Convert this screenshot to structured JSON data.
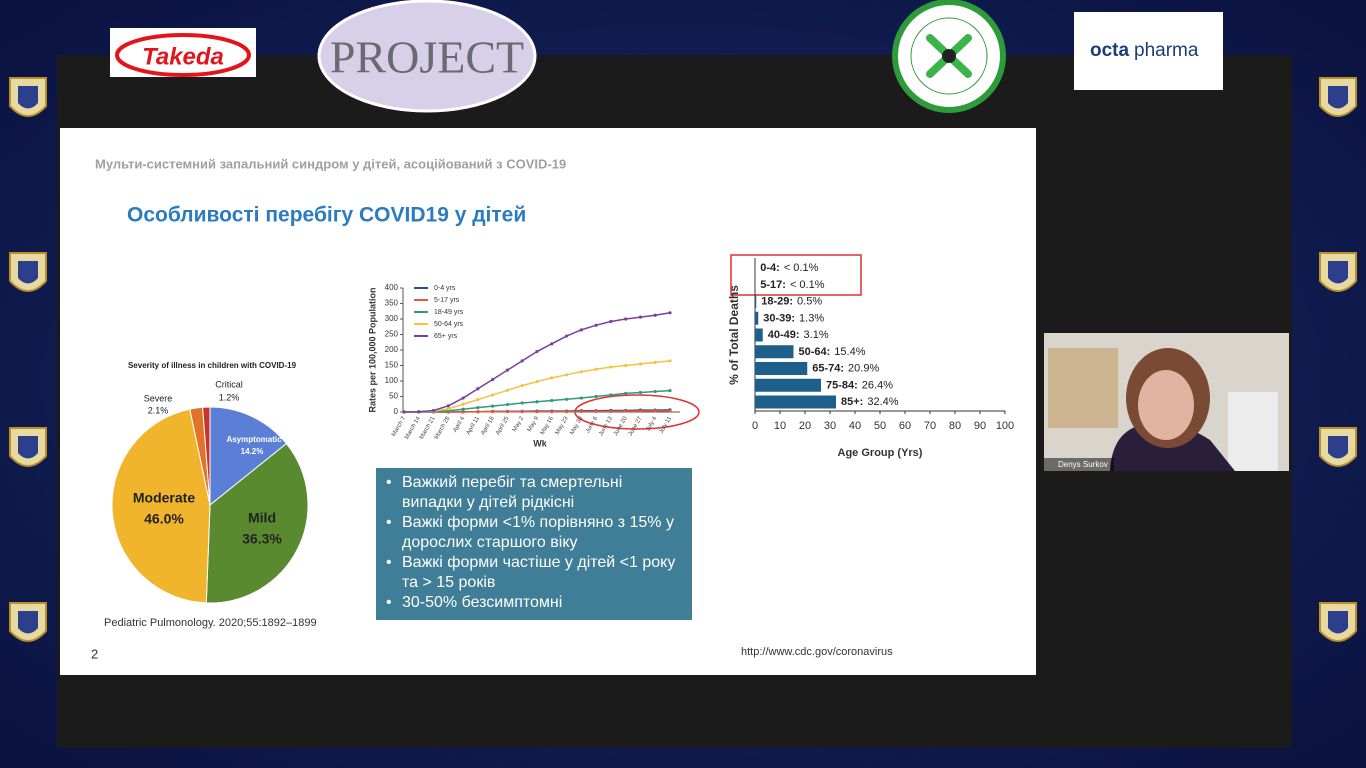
{
  "header": {
    "logos": [
      "Takeda",
      "PROJECT",
      "octa",
      "pharma"
    ]
  },
  "slide": {
    "subtitle": "Мульти-системний запальний синдром  у дітей, асоційований з COVID-19",
    "title": "Особливості перебігу COVID19 у дітей",
    "bullets": [
      "Важкий перебіг та смертельні випадки у дітей рідкісні",
      "Важкі форми <1% порівняно з 15% у дорослих старшого віку",
      "Важкі форми частіше у дітей <1 року  та > 15 років",
      "30-50% безсимптомні"
    ],
    "source": "Pediatric Pulmonology. 2020;55:1892–1899",
    "page_number": "2",
    "url": "http://www.cdc.gov/coronavirus"
  },
  "webcam": {
    "name": "Denys Surkov"
  },
  "chart_data": [
    {
      "type": "pie",
      "title": "Severity of illness in children with COVID-19",
      "categories": [
        "Asymptomatic",
        "Mild",
        "Moderate",
        "Severe",
        "Critical"
      ],
      "values": [
        14.2,
        36.3,
        46.0,
        2.1,
        1.2
      ],
      "value_labels": [
        "14.2%",
        "36.3%",
        "46.0%",
        "2.1%",
        "1.2%"
      ],
      "colors": [
        "#5b7fd6",
        "#5a8a30",
        "#f0b52c",
        "#e0742a",
        "#c8352a"
      ]
    },
    {
      "type": "line",
      "y_label": "Rates per 100,000 Population",
      "x_label": "Wk",
      "categories": [
        "March 7",
        "March 14",
        "March 21",
        "March 28",
        "April 4",
        "April 11",
        "April 18",
        "April 25",
        "May 2",
        "May 9",
        "May 16",
        "May 23",
        "May 30",
        "June 6",
        "June 13",
        "June 20",
        "June 27",
        "July 4",
        "July 11"
      ],
      "ylim": [
        0,
        400
      ],
      "yticks": [
        0,
        50,
        100,
        150,
        200,
        250,
        300,
        350,
        400
      ],
      "series": [
        {
          "name": "0-4 yrs",
          "color": "#2a4d8f",
          "values": [
            0,
            0,
            0,
            0,
            1,
            1,
            2,
            2,
            2,
            3,
            3,
            3,
            4,
            4,
            5,
            5,
            6,
            6,
            7
          ]
        },
        {
          "name": "5-17 yrs",
          "color": "#e05a3a",
          "values": [
            0,
            0,
            0,
            0,
            0,
            1,
            1,
            1,
            1,
            1,
            1,
            1,
            2,
            2,
            2,
            3,
            3,
            4,
            4
          ]
        },
        {
          "name": "18-49 yrs",
          "color": "#2e9a7a",
          "values": [
            0,
            0,
            1,
            4,
            9,
            14,
            19,
            24,
            29,
            33,
            37,
            41,
            45,
            50,
            55,
            60,
            63,
            66,
            69
          ]
        },
        {
          "name": "50-64 yrs",
          "color": "#f5c242",
          "values": [
            0,
            0,
            3,
            10,
            25,
            40,
            55,
            70,
            85,
            98,
            110,
            120,
            130,
            138,
            145,
            150,
            155,
            160,
            165
          ]
        },
        {
          "name": "65+ yrs",
          "color": "#7b3f9e",
          "values": [
            0,
            1,
            5,
            20,
            45,
            75,
            105,
            135,
            165,
            195,
            220,
            245,
            265,
            280,
            292,
            300,
            306,
            312,
            320
          ]
        }
      ]
    },
    {
      "type": "hbar",
      "y_label": "% of Total Deaths",
      "x_label": "Age Group (Yrs)",
      "categories": [
        "0-4:",
        "5-17:",
        "18-29:",
        "30-39:",
        "40-49:",
        "50-64:",
        "65-74:",
        "75-84:",
        "85+:"
      ],
      "values": [
        0.1,
        0.1,
        0.5,
        1.3,
        3.1,
        15.4,
        20.9,
        26.4,
        32.4
      ],
      "value_labels": [
        "< 0.1%",
        "< 0.1%",
        "0.5%",
        "1.3%",
        "3.1%",
        "15.4%",
        "20.9%",
        "26.4%",
        "32.4%"
      ],
      "color": "#1f5f8b",
      "xlim": [
        0,
        100
      ],
      "xticks": [
        0,
        10,
        20,
        30,
        40,
        50,
        60,
        70,
        80,
        90,
        100
      ]
    }
  ]
}
